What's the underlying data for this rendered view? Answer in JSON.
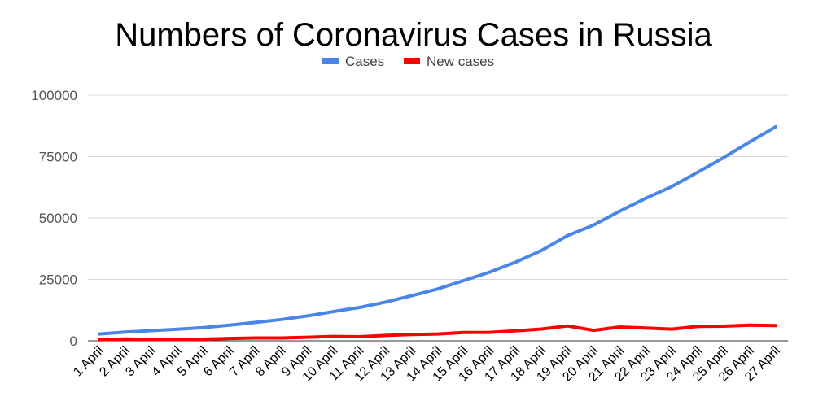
{
  "chart_data": {
    "type": "line",
    "title": "Numbers of Coronavirus Cases in Russia",
    "xlabel": "",
    "ylabel": "",
    "ylim": [
      0,
      100000
    ],
    "yticks": [
      "0",
      "25000",
      "50000",
      "75000",
      "100000"
    ],
    "ytick_values": [
      0,
      25000,
      50000,
      75000,
      100000
    ],
    "grid": true,
    "legend_position": "top-center",
    "categories": [
      "1 April",
      "2 April",
      "3 April",
      "4 April",
      "5 April",
      "6 April",
      "7 April",
      "8 April",
      "9 April",
      "10 April",
      "11 April",
      "12 April",
      "13 April",
      "14 April",
      "15 April",
      "16 April",
      "17 April",
      "18 April",
      "19 April",
      "20 April",
      "21 April",
      "22 April",
      "23 April",
      "24 April",
      "25 April",
      "26 April",
      "27 April"
    ],
    "series": [
      {
        "name": "Cases",
        "color": "#4a86e8",
        "values": [
          2777,
          3548,
          4149,
          4731,
          5389,
          6343,
          7497,
          8672,
          10131,
          11917,
          13584,
          15770,
          18328,
          21102,
          24490,
          27938,
          32008,
          36793,
          42853,
          47121,
          52763,
          57999,
          62773,
          68622,
          74588,
          80949,
          87147
        ]
      },
      {
        "name": "New cases",
        "color": "#ff0000",
        "values": [
          440,
          771,
          601,
          582,
          658,
          954,
          1154,
          1175,
          1459,
          1786,
          1667,
          2186,
          2558,
          2774,
          3388,
          3448,
          4070,
          4785,
          6060,
          4268,
          5642,
          5236,
          4774,
          5849,
          5966,
          6361,
          6198
        ]
      }
    ]
  }
}
